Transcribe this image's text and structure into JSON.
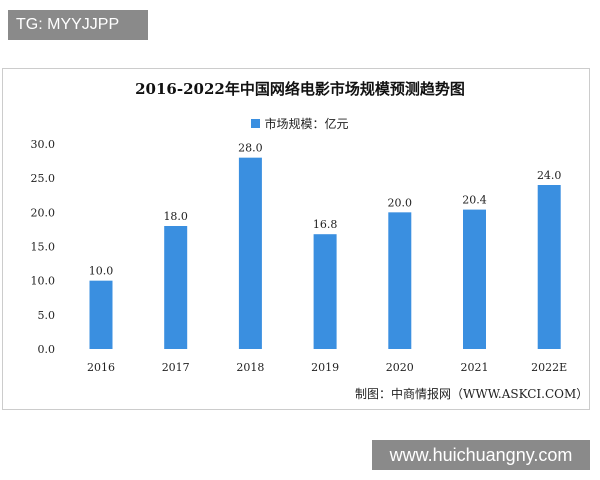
{
  "watermark_top": "TG: MYYJJPP",
  "watermark_bottom": "www.huichuangny.com",
  "source": "制图：中商情报网（WWW.ASKCI.COM）",
  "chart_data": {
    "type": "bar",
    "title": "2016-2022年中国网络电影市场规模预测趋势图",
    "categories": [
      "2016",
      "2017",
      "2018",
      "2019",
      "2020",
      "2021",
      "2022E"
    ],
    "series": [
      {
        "name": "市场规模：亿元",
        "values": [
          10.0,
          18.0,
          28.0,
          16.8,
          20.0,
          20.4,
          24.0
        ],
        "color": "#3a8fe0"
      }
    ],
    "data_labels": [
      "10.0",
      "18.0",
      "28.0",
      "16.8",
      "20.0",
      "20.4",
      "24.0"
    ],
    "yticks": [
      "0.0",
      "5.0",
      "10.0",
      "15.0",
      "20.0",
      "25.0",
      "30.0"
    ],
    "ylim": [
      0,
      30
    ],
    "grid": false,
    "legend": "top"
  }
}
